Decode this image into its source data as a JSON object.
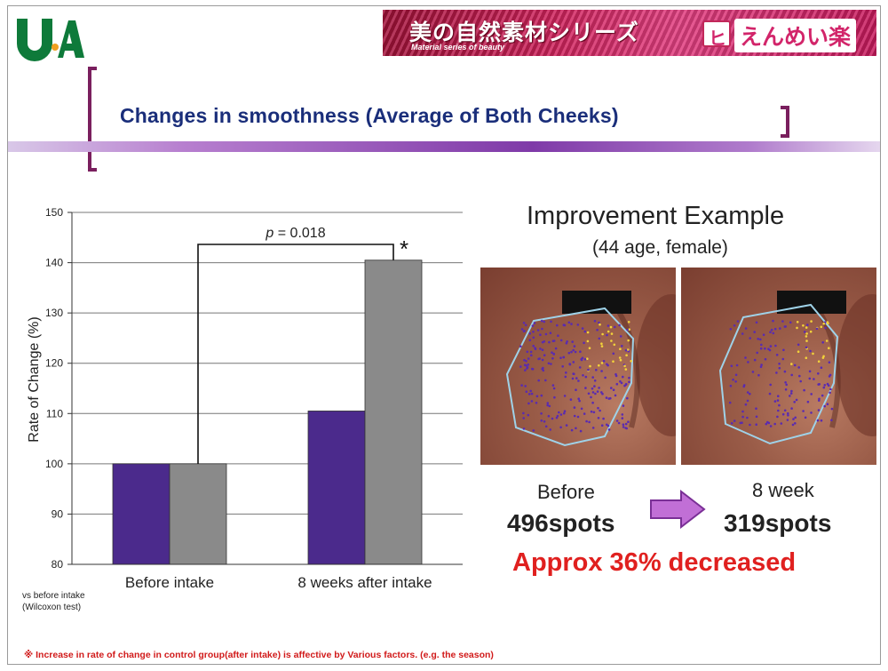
{
  "header": {
    "logo_text": "U·A",
    "banner_title": "美の自然素材シリーズ",
    "banner_subtitle": "Material series of beauty",
    "brand_mark": "ヒ",
    "brand_name": "えんめい楽",
    "title": "Changes in smoothness (Average of Both Cheeks)"
  },
  "colors": {
    "bar_treatment": "#4b2a8c",
    "bar_control": "#8a8a8a",
    "title": "#1a2e7a",
    "accent_red": "#e0201f",
    "bracket": "#7a1f5e"
  },
  "chart_data": {
    "type": "bar",
    "categories": [
      "Before intake",
      "8 weeks after intake"
    ],
    "series": [
      {
        "values": [
          100,
          110.5
        ]
      },
      {
        "values": [
          100,
          140.5
        ]
      }
    ],
    "ylabel": "Rate of Change (%)",
    "ylim": [
      80,
      150
    ],
    "yticks": [
      80,
      90,
      100,
      110,
      120,
      130,
      140,
      150
    ],
    "grid": true,
    "annotation": {
      "p_prefix": "p",
      "p_text": " = 0.018",
      "significance": "*"
    }
  },
  "footnotes": {
    "test_line1": "vs before intake",
    "test_line2": "(Wilcoxon test)",
    "note": "※ Increase in rate of change in control group(after intake) is affective by Various factors. (e.g. the season)"
  },
  "example": {
    "title": "Improvement Example",
    "subtitle": "(44 age, female)",
    "before_label": "Before",
    "after_label": "8 week",
    "before_count": "496spots",
    "after_count": "319spots",
    "result": "Approx 36% decreased"
  }
}
